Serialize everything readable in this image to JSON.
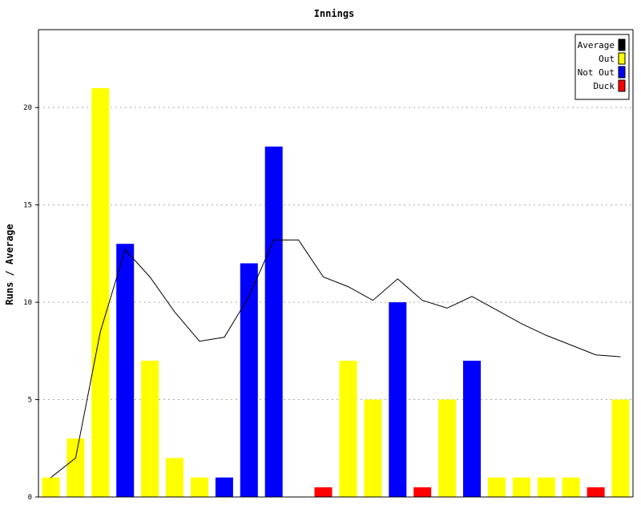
{
  "chart_data": {
    "type": "bar",
    "title": "Innings",
    "ylabel": "Runs / Average",
    "xlabel": "",
    "ylim": [
      0,
      24
    ],
    "yticks": [
      0,
      5,
      10,
      15,
      20
    ],
    "grid": true,
    "legend_position": "top-right",
    "legend": [
      {
        "key": "average",
        "label": "Average",
        "color": "#000000"
      },
      {
        "key": "out",
        "label": "Out",
        "color": "#ffff00"
      },
      {
        "key": "not_out",
        "label": "Not Out",
        "color": "#0000ff"
      },
      {
        "key": "duck",
        "label": "Duck",
        "color": "#ff0000"
      }
    ],
    "innings": [
      {
        "runs": 1,
        "status": "out"
      },
      {
        "runs": 3,
        "status": "out"
      },
      {
        "runs": 21,
        "status": "out"
      },
      {
        "runs": 13,
        "status": "not_out"
      },
      {
        "runs": 7,
        "status": "out"
      },
      {
        "runs": 2,
        "status": "out"
      },
      {
        "runs": 1,
        "status": "out"
      },
      {
        "runs": 1,
        "status": "not_out"
      },
      {
        "runs": 12,
        "status": "not_out"
      },
      {
        "runs": 18,
        "status": "not_out"
      },
      {
        "runs": 0,
        "status": "none"
      },
      {
        "runs": 0.5,
        "status": "duck"
      },
      {
        "runs": 7,
        "status": "out"
      },
      {
        "runs": 5,
        "status": "out"
      },
      {
        "runs": 10,
        "status": "not_out"
      },
      {
        "runs": 0.5,
        "status": "duck"
      },
      {
        "runs": 5,
        "status": "out"
      },
      {
        "runs": 7,
        "status": "not_out"
      },
      {
        "runs": 1,
        "status": "out"
      },
      {
        "runs": 1,
        "status": "out"
      },
      {
        "runs": 1,
        "status": "out"
      },
      {
        "runs": 1,
        "status": "out"
      },
      {
        "runs": 0.5,
        "status": "duck"
      },
      {
        "runs": 5,
        "status": "out"
      }
    ],
    "average": [
      1,
      2,
      8.5,
      12.7,
      11.3,
      9.5,
      8.0,
      8.2,
      10.3,
      13.2,
      13.2,
      11.3,
      10.8,
      10.1,
      11.2,
      10.1,
      9.7,
      10.3,
      9.6,
      8.9,
      8.3,
      7.8,
      7.3,
      7.2
    ]
  }
}
